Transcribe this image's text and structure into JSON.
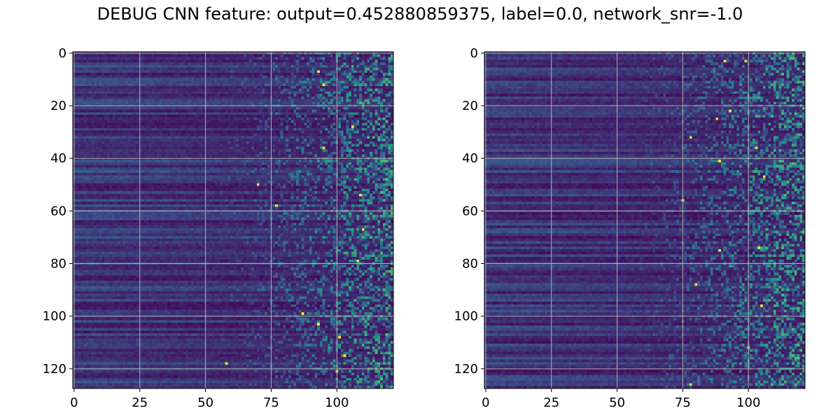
{
  "figure": {
    "title": "DEBUG CNN feature: output=0.452880859375, label=0.0, network_snr=-1.0"
  },
  "colormap": {
    "name": "viridis",
    "stops": [
      "#440154",
      "#3b528b",
      "#21918c",
      "#5ec962",
      "#fde725"
    ]
  },
  "chart_data": [
    {
      "type": "heatmap",
      "name": "",
      "shape": [
        128,
        122
      ],
      "xlim": [
        -0.5,
        121.5
      ],
      "ylim": [
        127.5,
        -0.5
      ],
      "xticks": [
        0,
        25,
        50,
        75,
        100
      ],
      "yticks": [
        0,
        20,
        40,
        60,
        80,
        100,
        120
      ],
      "grid": true,
      "pattern": "dark horizontally-banded values at low column indices; sparse noisy speckle with isolated bright (yellow) pixels increasing from roughly column 60 to column 121",
      "bright_pixels": [
        [
          7,
          93
        ],
        [
          12,
          95
        ],
        [
          28,
          106
        ],
        [
          36,
          95
        ],
        [
          50,
          70
        ],
        [
          54,
          109
        ],
        [
          58,
          77
        ],
        [
          67,
          110
        ],
        [
          79,
          108
        ],
        [
          99,
          87
        ],
        [
          103,
          93
        ],
        [
          108,
          101
        ],
        [
          115,
          103
        ],
        [
          118,
          58
        ],
        [
          121,
          100
        ]
      ]
    },
    {
      "type": "heatmap",
      "name": "",
      "shape": [
        128,
        122
      ],
      "xlim": [
        -0.5,
        121.5
      ],
      "ylim": [
        127.5,
        -0.5
      ],
      "xticks": [
        0,
        25,
        50,
        75,
        100
      ],
      "yticks": [
        0,
        20,
        40,
        60,
        80,
        100,
        120
      ],
      "grid": true,
      "pattern": "dark horizontally-banded values at low column indices; sparse noisy speckle with isolated bright (yellow) pixels increasing from roughly column 60 to column 121",
      "bright_pixels": [
        [
          3,
          91
        ],
        [
          3,
          99
        ],
        [
          22,
          93
        ],
        [
          25,
          88
        ],
        [
          32,
          78
        ],
        [
          36,
          103
        ],
        [
          41,
          89
        ],
        [
          47,
          106
        ],
        [
          56,
          75
        ],
        [
          74,
          104
        ],
        [
          75,
          89
        ],
        [
          88,
          80
        ],
        [
          96,
          105
        ],
        [
          112,
          100
        ],
        [
          126,
          78
        ]
      ]
    }
  ]
}
